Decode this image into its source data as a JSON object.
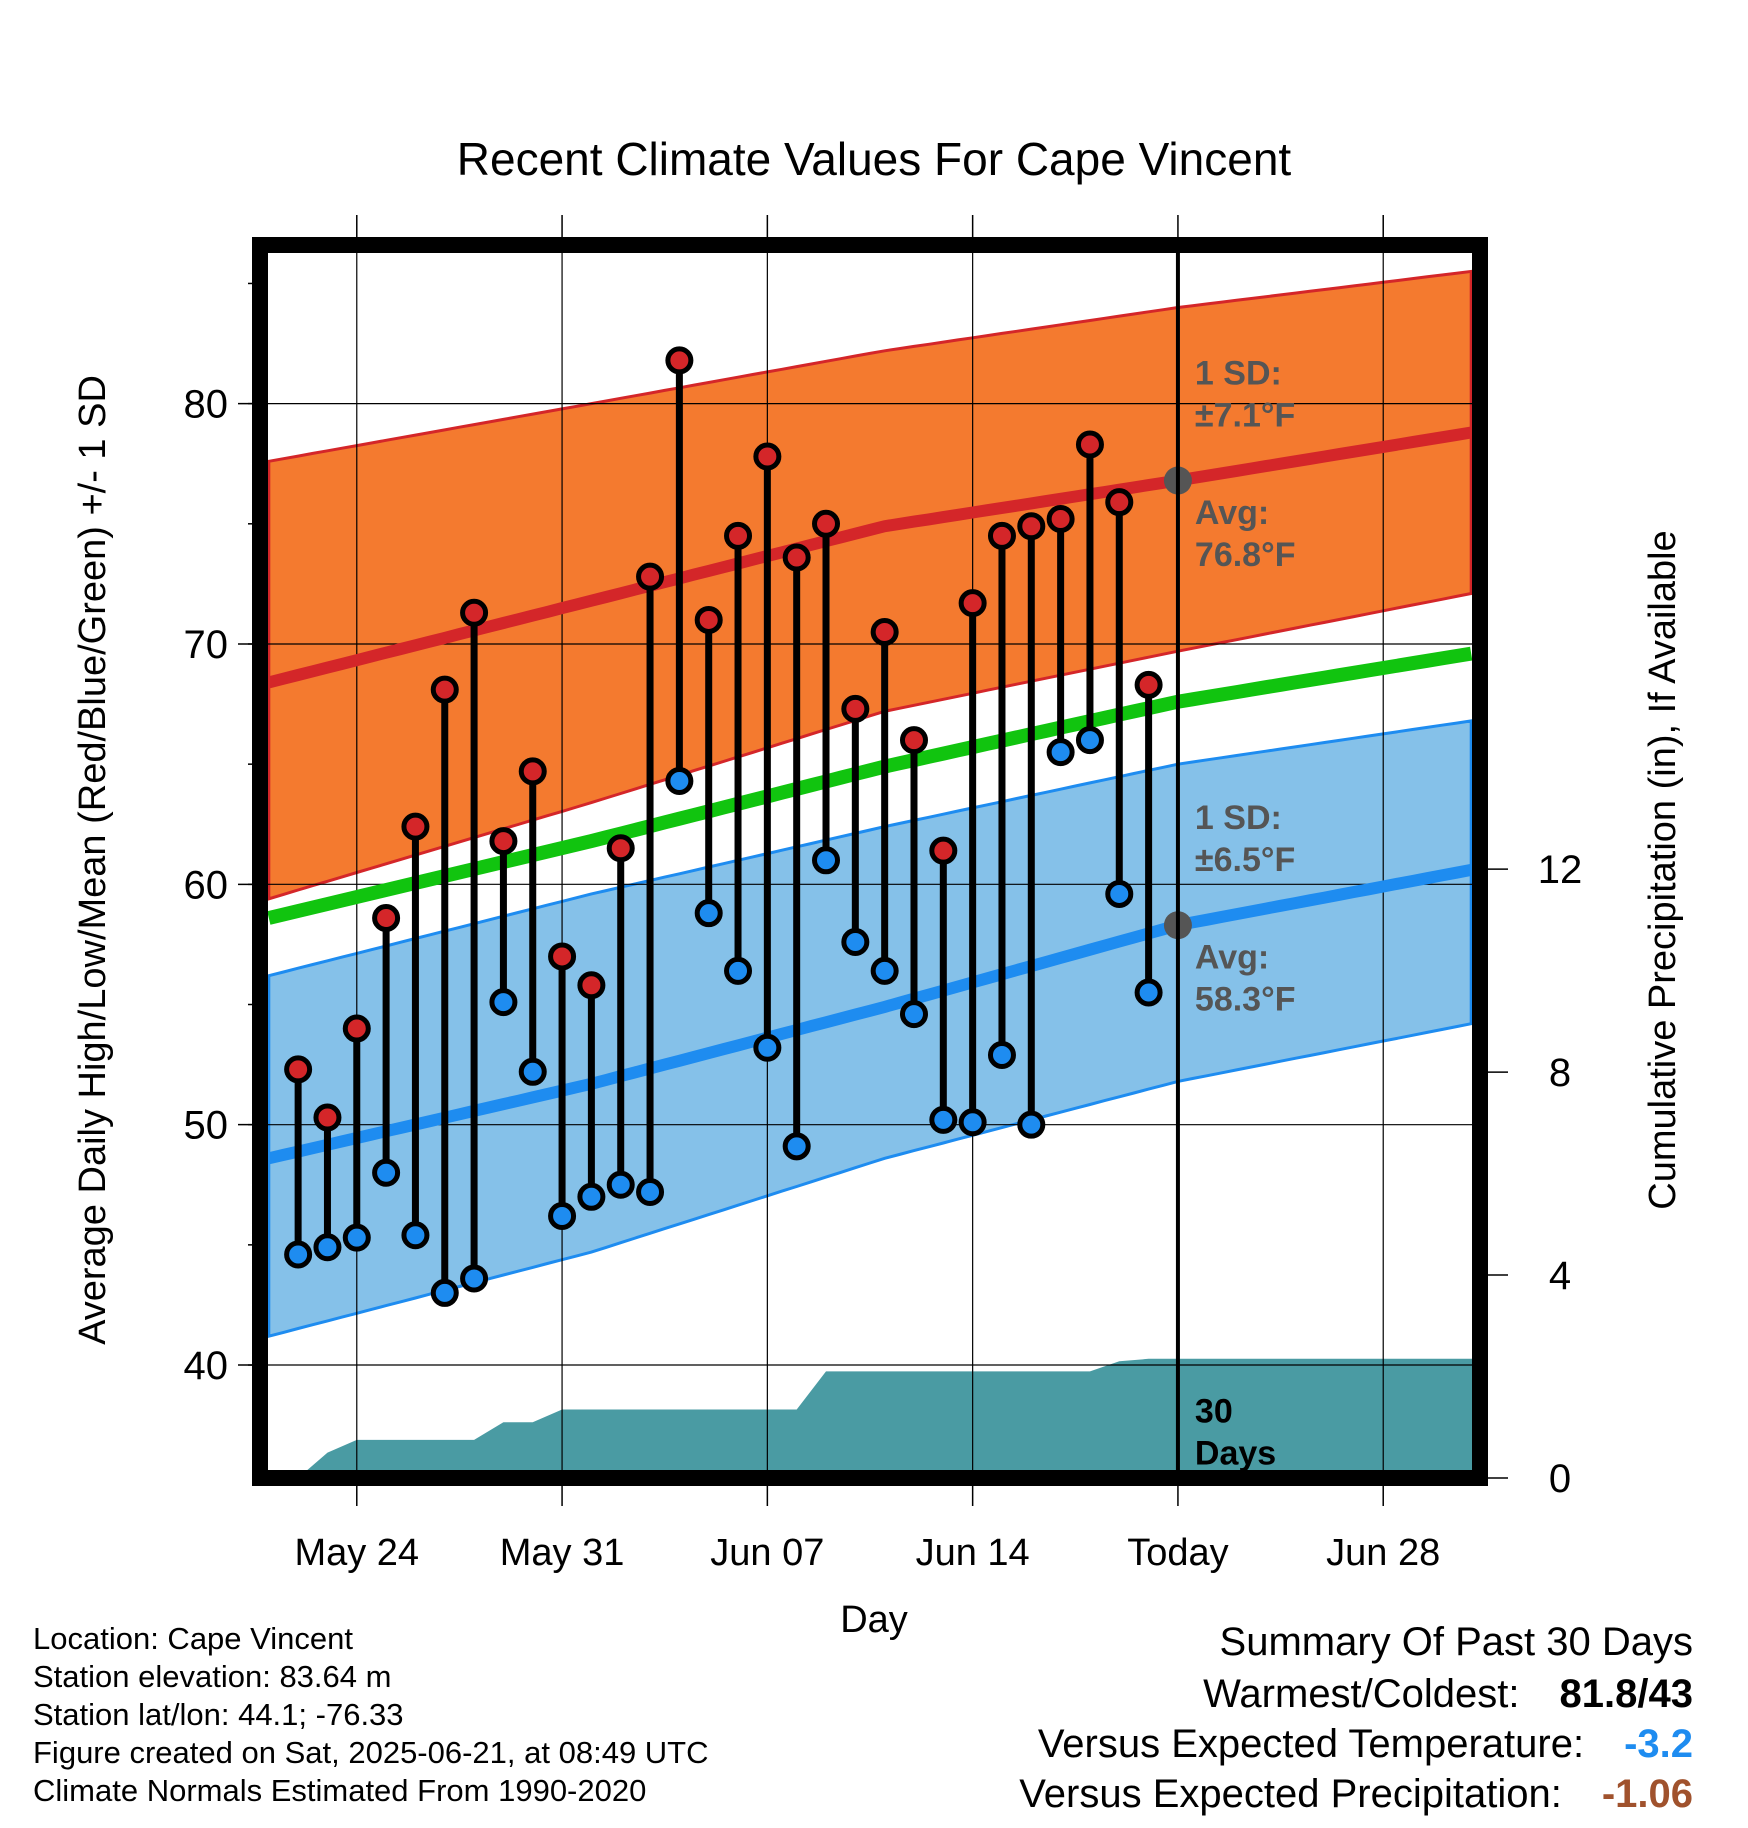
{
  "chart_data": {
    "type": "line",
    "title": "Recent Climate Values For Cape Vincent",
    "xlabel": "Day",
    "ylabel_left": "Average Daily High/Low/Mean (Red/Blue/Green) +/- 1 SD",
    "ylabel_right": "Cumulative Precipitation (in), If Available",
    "ylim_left": [
      35.3,
      86.6
    ],
    "ylim_right": [
      0,
      24.3
    ],
    "xlim_days": [
      -31.3,
      10.3
    ],
    "x_ticks": [
      {
        "day": -28,
        "label": "May 24"
      },
      {
        "day": -21,
        "label": "May 31"
      },
      {
        "day": -14,
        "label": "Jun 07"
      },
      {
        "day": -7,
        "label": "Jun 14"
      },
      {
        "day": 0,
        "label": "Today"
      },
      {
        "day": 7,
        "label": "Jun 28"
      }
    ],
    "y_ticks_left": [
      "40",
      "50",
      "60",
      "70",
      "80"
    ],
    "y_tick_values_left": [
      40,
      50,
      60,
      70,
      80
    ],
    "y_ticks_right": [
      "0",
      "4",
      "8",
      "12"
    ],
    "y_tick_values_right": [
      0,
      4,
      8,
      12
    ],
    "grid": true,
    "normals": {
      "high_avg": [
        [
          -31,
          68.4
        ],
        [
          -20,
          71.8
        ],
        [
          -10,
          74.9
        ],
        [
          0,
          76.8
        ],
        [
          10,
          78.8
        ]
      ],
      "high_upper": [
        [
          -31,
          77.6
        ],
        [
          -20,
          80.0
        ],
        [
          -10,
          82.2
        ],
        [
          0,
          84.0
        ],
        [
          10,
          85.5
        ]
      ],
      "high_lower": [
        [
          -31,
          59.4
        ],
        [
          -20,
          63.4
        ],
        [
          -10,
          67.2
        ],
        [
          0,
          69.7
        ],
        [
          10,
          72.1
        ]
      ],
      "mean_avg": [
        [
          -31,
          58.6
        ],
        [
          -20,
          61.8
        ],
        [
          -10,
          64.9
        ],
        [
          0,
          67.6
        ],
        [
          10,
          69.6
        ]
      ],
      "low_avg": [
        [
          -31,
          48.6
        ],
        [
          -20,
          51.7
        ],
        [
          -10,
          54.9
        ],
        [
          0,
          58.3
        ],
        [
          10,
          60.6
        ]
      ],
      "low_upper": [
        [
          -31,
          56.2
        ],
        [
          -20,
          59.6
        ],
        [
          -10,
          62.4
        ],
        [
          0,
          65.0
        ],
        [
          10,
          66.8
        ]
      ],
      "low_lower": [
        [
          -31,
          41.2
        ],
        [
          -20,
          44.7
        ],
        [
          -10,
          48.6
        ],
        [
          0,
          51.8
        ],
        [
          10,
          54.2
        ]
      ]
    },
    "days": [
      -30,
      -29,
      -28,
      -27,
      -26,
      -25,
      -24,
      -23,
      -22,
      -21,
      -20,
      -19,
      -18,
      -17,
      -16,
      -15,
      -14,
      -13,
      -12,
      -11,
      -10,
      -9,
      -8,
      -7,
      -6,
      -5,
      -4,
      -3,
      -2,
      -1
    ],
    "highs": [
      52.3,
      50.3,
      54.0,
      58.6,
      62.4,
      68.1,
      71.3,
      61.8,
      64.7,
      57.0,
      55.8,
      61.5,
      72.8,
      81.8,
      71.0,
      74.5,
      77.8,
      73.6,
      75.0,
      67.3,
      70.5,
      66.0,
      61.4,
      71.7,
      74.5,
      74.9,
      75.2,
      78.3,
      75.9,
      68.3
    ],
    "lows": [
      44.6,
      44.9,
      45.3,
      48.0,
      45.4,
      43.0,
      43.6,
      55.1,
      52.2,
      46.2,
      47.0,
      47.5,
      47.2,
      64.3,
      58.8,
      56.4,
      53.2,
      49.1,
      61.0,
      57.6,
      56.4,
      54.6,
      50.2,
      50.1,
      52.9,
      50.0,
      65.5,
      66.0,
      59.6,
      55.5
    ],
    "precip_cumulative": [
      [
        -31,
        0.0
      ],
      [
        -30,
        0.0
      ],
      [
        -29,
        0.5
      ],
      [
        -28,
        0.75
      ],
      [
        -25,
        0.75
      ],
      [
        -24,
        0.75
      ],
      [
        -23,
        1.1
      ],
      [
        -22,
        1.1
      ],
      [
        -21,
        1.35
      ],
      [
        -13,
        1.35
      ],
      [
        -12,
        2.1
      ],
      [
        -3,
        2.1
      ],
      [
        -2,
        2.3
      ],
      [
        -1,
        2.35
      ],
      [
        10.3,
        2.35
      ]
    ],
    "annotations": {
      "high_sd_line1": "1 SD:",
      "high_sd_line2": "±7.1°F",
      "high_avg_line1": "Avg:",
      "high_avg_line2": "76.8°F",
      "low_sd_line1": "1 SD:",
      "low_sd_line2": "±6.5°F",
      "low_avg_line1": "Avg:",
      "low_avg_line2": "58.3°F",
      "days_line1": "30",
      "days_line2": "Days"
    },
    "colors": {
      "high_band": "#f47a2f",
      "high_line": "#d42629",
      "mean_line": "#11c40f",
      "low_band": "#85c1e9",
      "low_line": "#1e8cf0",
      "precip": "#4a9ba3",
      "annotation": "#555555",
      "marker_high": "#d42629",
      "marker_low": "#1e8cf0"
    }
  },
  "station": {
    "location": "Location: Cape Vincent",
    "elevation": "Station elevation: 83.64 m",
    "latlon": "Station lat/lon: 44.1; -76.33",
    "created": "Figure created on Sat, 2025-06-21, at 08:49 UTC",
    "normals": "Climate Normals Estimated From 1990-2020"
  },
  "summary": {
    "title": "Summary Of Past 30 Days",
    "warmest_label": "Warmest/Coldest:",
    "warmest_value": "81.8/43",
    "temp_label": "Versus Expected Temperature:",
    "temp_value": "-3.2",
    "temp_color": "#1e8cf0",
    "precip_label": "Versus Expected Precipitation:",
    "precip_value": "-1.06",
    "precip_color": "#a0522d"
  }
}
